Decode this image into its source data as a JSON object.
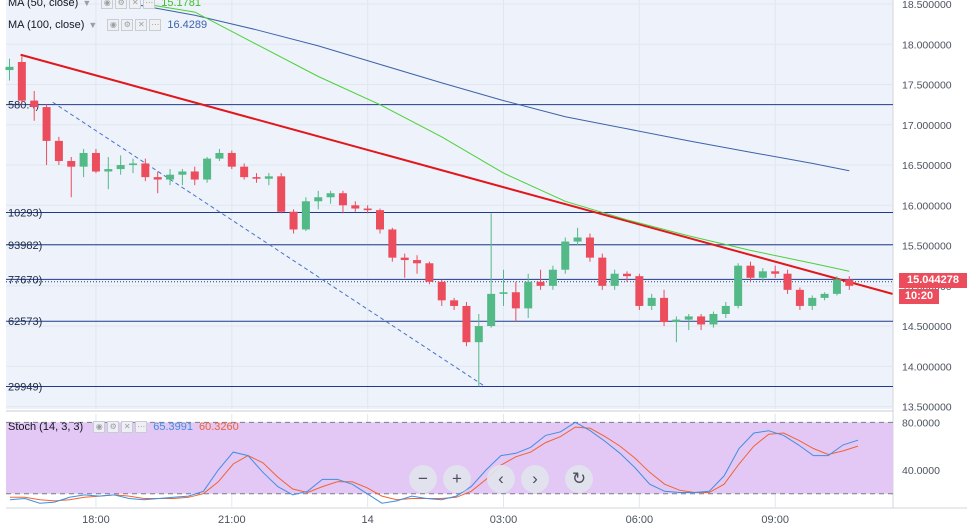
{
  "legend": {
    "ma50_label": "MA (50, close)",
    "ma50_value": "15.1781",
    "ma100_label": "MA (100, close)",
    "ma100_value": "16.4289",
    "stoch_label": "Stoch (14, 3, 3)",
    "stoch_k_value": "65.3991",
    "stoch_d_value": "60.3260"
  },
  "price_tag": {
    "price": "15.044278",
    "countdown": "10:20"
  },
  "colors": {
    "up": "#53b987",
    "down": "#eb4d5c",
    "ma50": "#4cd137",
    "ma100": "#3d63a8",
    "trend": "#e2171b",
    "hline": "#1f3b8a",
    "stoch_k": "#3f8fe0",
    "stoch_d": "#f06434",
    "stoch_band": "#e3c7f4",
    "price_tag": "#eb4d5c"
  },
  "nav_icons": [
    "zoom-out-icon",
    "zoom-in-icon",
    "scroll-left-icon",
    "scroll-right-icon",
    "reset-icon"
  ],
  "chart_data": {
    "type": "candlestick",
    "title": "",
    "y_ticks": [
      "18.500000",
      "18.000000",
      "17.500000",
      "17.000000",
      "16.500000",
      "16.000000",
      "15.500000",
      "15.000000",
      "14.500000",
      "14.000000",
      "13.500000"
    ],
    "ylim": [
      13.47,
      18.55
    ],
    "x_ticks": [
      {
        "label": "18:00",
        "index": 7
      },
      {
        "label": "21:00",
        "index": 18
      },
      {
        "label": "14",
        "index": 29
      },
      {
        "label": "03:00",
        "index": 40
      },
      {
        "label": "06:00",
        "index": 51
      },
      {
        "label": "09:00",
        "index": 62
      }
    ],
    "candles": [
      {
        "o": 17.68,
        "h": 17.82,
        "l": 17.55,
        "c": 17.72
      },
      {
        "o": 17.78,
        "h": 17.85,
        "l": 17.25,
        "c": 17.3
      },
      {
        "o": 17.3,
        "h": 17.42,
        "l": 17.05,
        "c": 17.22
      },
      {
        "o": 17.22,
        "h": 17.25,
        "l": 16.5,
        "c": 16.8
      },
      {
        "o": 16.8,
        "h": 16.85,
        "l": 16.5,
        "c": 16.55
      },
      {
        "o": 16.55,
        "h": 16.6,
        "l": 16.1,
        "c": 16.48
      },
      {
        "o": 16.48,
        "h": 16.7,
        "l": 16.35,
        "c": 16.65
      },
      {
        "o": 16.65,
        "h": 16.7,
        "l": 16.4,
        "c": 16.42
      },
      {
        "o": 16.42,
        "h": 16.6,
        "l": 16.2,
        "c": 16.45
      },
      {
        "o": 16.45,
        "h": 16.62,
        "l": 16.38,
        "c": 16.5
      },
      {
        "o": 16.5,
        "h": 16.58,
        "l": 16.4,
        "c": 16.52
      },
      {
        "o": 16.52,
        "h": 16.58,
        "l": 16.3,
        "c": 16.35
      },
      {
        "o": 16.35,
        "h": 16.42,
        "l": 16.15,
        "c": 16.32
      },
      {
        "o": 16.32,
        "h": 16.45,
        "l": 16.25,
        "c": 16.38
      },
      {
        "o": 16.38,
        "h": 16.45,
        "l": 16.25,
        "c": 16.42
      },
      {
        "o": 16.42,
        "h": 16.48,
        "l": 16.25,
        "c": 16.32
      },
      {
        "o": 16.32,
        "h": 16.6,
        "l": 16.28,
        "c": 16.58
      },
      {
        "o": 16.58,
        "h": 16.7,
        "l": 16.55,
        "c": 16.65
      },
      {
        "o": 16.65,
        "h": 16.68,
        "l": 16.45,
        "c": 16.48
      },
      {
        "o": 16.48,
        "h": 16.52,
        "l": 16.32,
        "c": 16.35
      },
      {
        "o": 16.35,
        "h": 16.4,
        "l": 16.28,
        "c": 16.33
      },
      {
        "o": 16.33,
        "h": 16.4,
        "l": 16.25,
        "c": 16.36
      },
      {
        "o": 16.36,
        "h": 16.4,
        "l": 15.9,
        "c": 15.92
      },
      {
        "o": 15.92,
        "h": 15.95,
        "l": 15.65,
        "c": 15.7
      },
      {
        "o": 15.7,
        "h": 16.1,
        "l": 15.68,
        "c": 16.05
      },
      {
        "o": 16.05,
        "h": 16.18,
        "l": 15.95,
        "c": 16.1
      },
      {
        "o": 16.1,
        "h": 16.18,
        "l": 16.02,
        "c": 16.15
      },
      {
        "o": 16.15,
        "h": 16.18,
        "l": 15.9,
        "c": 16.0
      },
      {
        "o": 16.0,
        "h": 16.05,
        "l": 15.92,
        "c": 15.96
      },
      {
        "o": 15.96,
        "h": 16.0,
        "l": 15.9,
        "c": 15.94
      },
      {
        "o": 15.94,
        "h": 15.96,
        "l": 15.65,
        "c": 15.7
      },
      {
        "o": 15.7,
        "h": 15.72,
        "l": 15.3,
        "c": 15.35
      },
      {
        "o": 15.35,
        "h": 15.4,
        "l": 15.1,
        "c": 15.32
      },
      {
        "o": 15.32,
        "h": 15.38,
        "l": 15.15,
        "c": 15.28
      },
      {
        "o": 15.28,
        "h": 15.3,
        "l": 15.02,
        "c": 15.05
      },
      {
        "o": 15.05,
        "h": 15.08,
        "l": 14.75,
        "c": 14.82
      },
      {
        "o": 14.82,
        "h": 14.85,
        "l": 14.7,
        "c": 14.75
      },
      {
        "o": 14.75,
        "h": 14.8,
        "l": 14.25,
        "c": 14.3
      },
      {
        "o": 14.3,
        "h": 14.65,
        "l": 13.75,
        "c": 14.5
      },
      {
        "o": 14.5,
        "h": 15.9,
        "l": 14.48,
        "c": 14.9
      },
      {
        "o": 14.9,
        "h": 15.2,
        "l": 14.75,
        "c": 14.92
      },
      {
        "o": 14.92,
        "h": 15.05,
        "l": 14.55,
        "c": 14.72
      },
      {
        "o": 14.72,
        "h": 15.15,
        "l": 14.6,
        "c": 15.05
      },
      {
        "o": 15.05,
        "h": 15.2,
        "l": 14.95,
        "c": 15.0
      },
      {
        "o": 15.0,
        "h": 15.25,
        "l": 14.95,
        "c": 15.2
      },
      {
        "o": 15.2,
        "h": 15.6,
        "l": 15.15,
        "c": 15.55
      },
      {
        "o": 15.55,
        "h": 15.72,
        "l": 15.5,
        "c": 15.6
      },
      {
        "o": 15.6,
        "h": 15.65,
        "l": 15.3,
        "c": 15.35
      },
      {
        "o": 15.35,
        "h": 15.4,
        "l": 14.95,
        "c": 15.0
      },
      {
        "o": 15.0,
        "h": 15.2,
        "l": 14.95,
        "c": 15.15
      },
      {
        "o": 15.15,
        "h": 15.18,
        "l": 15.05,
        "c": 15.12
      },
      {
        "o": 15.12,
        "h": 15.15,
        "l": 14.7,
        "c": 14.75
      },
      {
        "o": 14.75,
        "h": 14.9,
        "l": 14.7,
        "c": 14.85
      },
      {
        "o": 14.85,
        "h": 14.95,
        "l": 14.5,
        "c": 14.55
      },
      {
        "o": 14.55,
        "h": 14.62,
        "l": 14.3,
        "c": 14.58
      },
      {
        "o": 14.58,
        "h": 14.65,
        "l": 14.45,
        "c": 14.62
      },
      {
        "o": 14.62,
        "h": 14.65,
        "l": 14.45,
        "c": 14.52
      },
      {
        "o": 14.52,
        "h": 14.68,
        "l": 14.48,
        "c": 14.65
      },
      {
        "o": 14.65,
        "h": 14.8,
        "l": 14.6,
        "c": 14.75
      },
      {
        "o": 14.75,
        "h": 15.28,
        "l": 14.72,
        "c": 15.25
      },
      {
        "o": 15.25,
        "h": 15.3,
        "l": 15.05,
        "c": 15.1
      },
      {
        "o": 15.1,
        "h": 15.22,
        "l": 15.05,
        "c": 15.18
      },
      {
        "o": 15.18,
        "h": 15.25,
        "l": 15.1,
        "c": 15.15
      },
      {
        "o": 15.15,
        "h": 15.2,
        "l": 14.9,
        "c": 14.95
      },
      {
        "o": 14.95,
        "h": 14.98,
        "l": 14.7,
        "c": 14.75
      },
      {
        "o": 14.75,
        "h": 14.88,
        "l": 14.7,
        "c": 14.85
      },
      {
        "o": 14.85,
        "h": 14.92,
        "l": 14.82,
        "c": 14.9
      },
      {
        "o": 14.9,
        "h": 15.12,
        "l": 14.88,
        "c": 15.08
      },
      {
        "o": 15.08,
        "h": 15.12,
        "l": 14.95,
        "c": 15.0
      }
    ],
    "ma50": [
      {
        "i": 11,
        "v": 18.5
      },
      {
        "i": 15,
        "v": 18.4
      },
      {
        "i": 20,
        "v": 18.0
      },
      {
        "i": 25,
        "v": 17.6
      },
      {
        "i": 30,
        "v": 17.25
      },
      {
        "i": 35,
        "v": 16.85
      },
      {
        "i": 40,
        "v": 16.4
      },
      {
        "i": 45,
        "v": 16.05
      },
      {
        "i": 50,
        "v": 15.82
      },
      {
        "i": 55,
        "v": 15.62
      },
      {
        "i": 60,
        "v": 15.44
      },
      {
        "i": 65,
        "v": 15.28
      },
      {
        "i": 68,
        "v": 15.18
      }
    ],
    "ma100": [
      {
        "i": 10,
        "v": 18.5
      },
      {
        "i": 15,
        "v": 18.36
      },
      {
        "i": 20,
        "v": 18.18
      },
      {
        "i": 25,
        "v": 17.98
      },
      {
        "i": 30,
        "v": 17.75
      },
      {
        "i": 35,
        "v": 17.52
      },
      {
        "i": 40,
        "v": 17.3
      },
      {
        "i": 45,
        "v": 17.1
      },
      {
        "i": 50,
        "v": 16.95
      },
      {
        "i": 55,
        "v": 16.8
      },
      {
        "i": 60,
        "v": 16.66
      },
      {
        "i": 65,
        "v": 16.52
      },
      {
        "i": 68,
        "v": 16.43
      }
    ],
    "horizontal_levels": [
      {
        "price": 17.25,
        "label": "580.4)"
      },
      {
        "price": 15.91,
        "label": "10293)"
      },
      {
        "price": 15.51,
        "label": "93982)"
      },
      {
        "price": 15.08,
        "label": "77670)"
      },
      {
        "price": 14.56,
        "label": "62573)"
      },
      {
        "price": 13.75,
        "label": "29949)"
      }
    ],
    "dotted_level": 15.05,
    "trendline": {
      "i1": 0.9,
      "p1": 17.87,
      "i2": 71.5,
      "p2": 14.9
    },
    "dashed_line": {
      "i1": 3.5,
      "p1": 17.28,
      "i2": 38.5,
      "p2": 13.75
    },
    "stoch": {
      "y_ticks": [
        "80.0000",
        "40.0000"
      ],
      "upper_band": 80,
      "lower_band": 20,
      "ylim": [
        8,
        87
      ],
      "k": [
        15,
        16,
        12,
        13,
        17,
        19,
        18,
        19,
        16,
        15,
        16,
        17,
        18,
        22,
        40,
        55,
        52,
        38,
        26,
        19,
        22,
        32,
        32,
        28,
        20,
        12,
        14,
        18,
        16,
        15,
        18,
        26,
        40,
        52,
        54,
        59,
        69,
        72,
        80,
        73,
        64,
        54,
        42,
        28,
        22,
        21,
        21,
        22,
        35,
        58,
        71,
        73,
        69,
        61,
        52,
        52,
        61,
        65
      ],
      "d": [
        17,
        17,
        15,
        14,
        15,
        17,
        18,
        19,
        18,
        16,
        16,
        16,
        17,
        20,
        30,
        45,
        52,
        46,
        34,
        24,
        21,
        26,
        30,
        30,
        25,
        18,
        15,
        16,
        16,
        16,
        17,
        22,
        32,
        44,
        51,
        55,
        63,
        68,
        76,
        75,
        68,
        60,
        50,
        38,
        28,
        23,
        21,
        21,
        28,
        45,
        60,
        70,
        71,
        65,
        58,
        53,
        56,
        60
      ]
    }
  }
}
